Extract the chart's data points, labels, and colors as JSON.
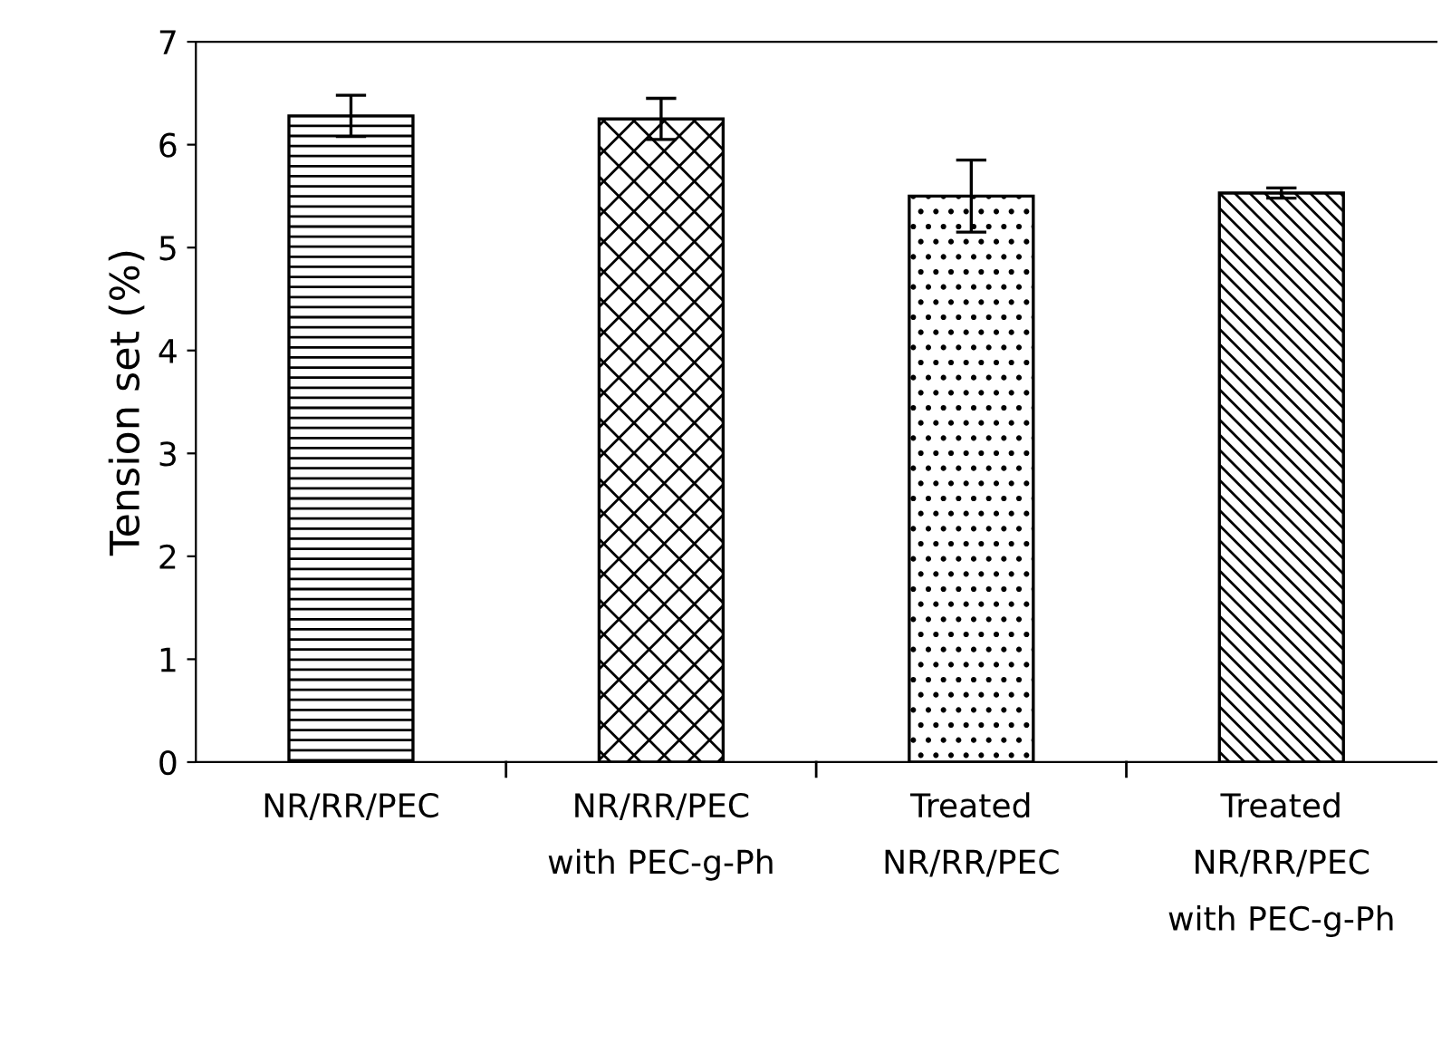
{
  "chart_data": {
    "type": "bar",
    "ylabel": "Tension set (%)",
    "categories": [
      "NR/RR/PEC",
      "NR/RR/PEC\nwith PEC-g-Ph",
      "Treated\nNR/RR/PEC",
      "Treated\nNR/RR/PEC\nwith PEC-g-Ph"
    ],
    "values": [
      6.28,
      6.25,
      5.5,
      5.53
    ],
    "errors": [
      0.2,
      0.2,
      0.35,
      0.05
    ],
    "color": "#000000",
    "ylim": [
      0,
      7
    ],
    "yticks": [
      0,
      1,
      2,
      3,
      4,
      5,
      6,
      7
    ],
    "grid": false,
    "legend": false
  }
}
